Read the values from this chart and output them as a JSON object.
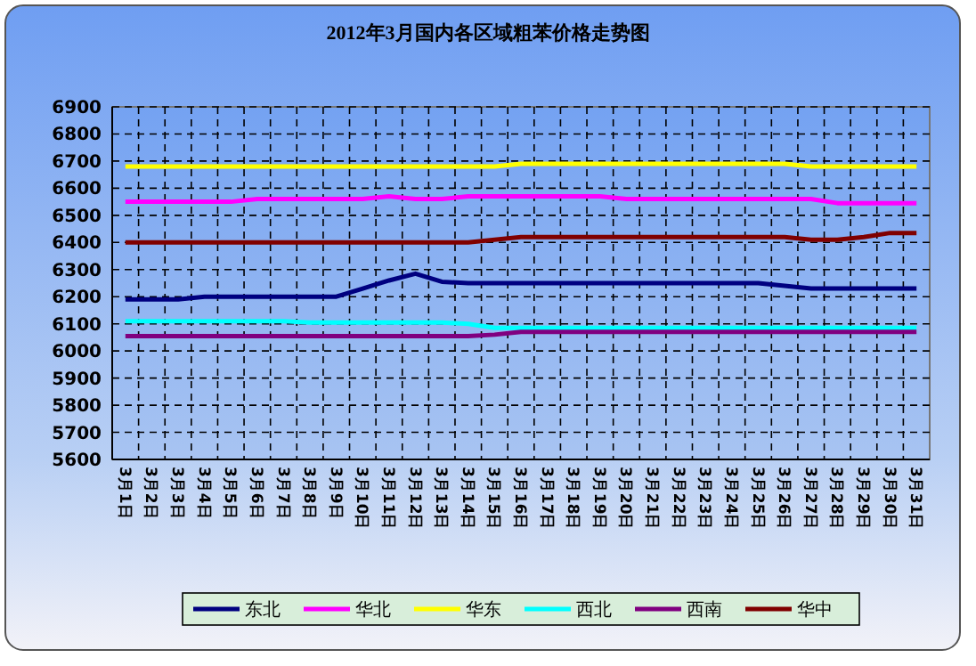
{
  "chart_data": {
    "type": "line",
    "title": "2012年3月国内各区域粗苯价格走势图",
    "categories": [
      "3月1日",
      "3月2日",
      "3月3日",
      "3月4日",
      "3月5日",
      "3月6日",
      "3月7日",
      "3月8日",
      "3月9日",
      "3月10日",
      "3月11日",
      "3月12日",
      "3月13日",
      "3月14日",
      "3月15日",
      "3月16日",
      "3月17日",
      "3月18日",
      "3月19日",
      "3月20日",
      "3月21日",
      "3月22日",
      "3月23日",
      "3月24日",
      "3月25日",
      "3月26日",
      "3月27日",
      "3月28日",
      "3月29日",
      "3月30日",
      "3月31日"
    ],
    "series": [
      {
        "name": "东北",
        "color": "#000080",
        "values": [
          6190,
          6190,
          6190,
          6200,
          6200,
          6200,
          6200,
          6200,
          6200,
          6230,
          6260,
          6285,
          6255,
          6250,
          6250,
          6250,
          6250,
          6250,
          6250,
          6250,
          6250,
          6250,
          6250,
          6250,
          6250,
          6240,
          6230,
          6230,
          6230,
          6230,
          6230
        ]
      },
      {
        "name": "华北",
        "color": "#ff00ff",
        "values": [
          6550,
          6550,
          6550,
          6550,
          6550,
          6560,
          6560,
          6560,
          6560,
          6560,
          6570,
          6560,
          6560,
          6570,
          6570,
          6570,
          6570,
          6570,
          6570,
          6560,
          6560,
          6560,
          6560,
          6560,
          6560,
          6560,
          6560,
          6545,
          6545,
          6545,
          6545
        ]
      },
      {
        "name": "华东",
        "color": "#ffff00",
        "values": [
          6680,
          6680,
          6680,
          6680,
          6680,
          6680,
          6680,
          6680,
          6680,
          6680,
          6680,
          6680,
          6680,
          6680,
          6680,
          6690,
          6690,
          6690,
          6690,
          6690,
          6690,
          6690,
          6690,
          6690,
          6690,
          6690,
          6680,
          6680,
          6680,
          6680,
          6680
        ]
      },
      {
        "name": "西北",
        "color": "#00ffff",
        "values": [
          6110,
          6110,
          6110,
          6110,
          6110,
          6110,
          6110,
          6105,
          6105,
          6105,
          6105,
          6105,
          6105,
          6100,
          6085,
          6085,
          6085,
          6085,
          6085,
          6085,
          6085,
          6085,
          6085,
          6085,
          6085,
          6085,
          6085,
          6085,
          6085,
          6085,
          6085
        ]
      },
      {
        "name": "西南",
        "color": "#800080",
        "values": [
          6055,
          6055,
          6055,
          6055,
          6055,
          6055,
          6055,
          6055,
          6055,
          6055,
          6055,
          6055,
          6055,
          6055,
          6060,
          6070,
          6070,
          6070,
          6070,
          6070,
          6070,
          6070,
          6070,
          6070,
          6070,
          6070,
          6070,
          6070,
          6070,
          6070,
          6070
        ]
      },
      {
        "name": "华中",
        "color": "#800000",
        "values": [
          6400,
          6400,
          6400,
          6400,
          6400,
          6400,
          6400,
          6400,
          6400,
          6400,
          6400,
          6400,
          6400,
          6400,
          6410,
          6420,
          6420,
          6420,
          6420,
          6420,
          6420,
          6420,
          6420,
          6420,
          6420,
          6420,
          6410,
          6410,
          6420,
          6435,
          6435
        ]
      }
    ],
    "ylim": [
      5600,
      6900
    ],
    "yticks": [
      5600,
      5700,
      5800,
      5900,
      6000,
      6100,
      6200,
      6300,
      6400,
      6500,
      6600,
      6700,
      6800,
      6900
    ],
    "grid": true,
    "legend": "bottom",
    "marker": "none",
    "line_style": "solid"
  }
}
